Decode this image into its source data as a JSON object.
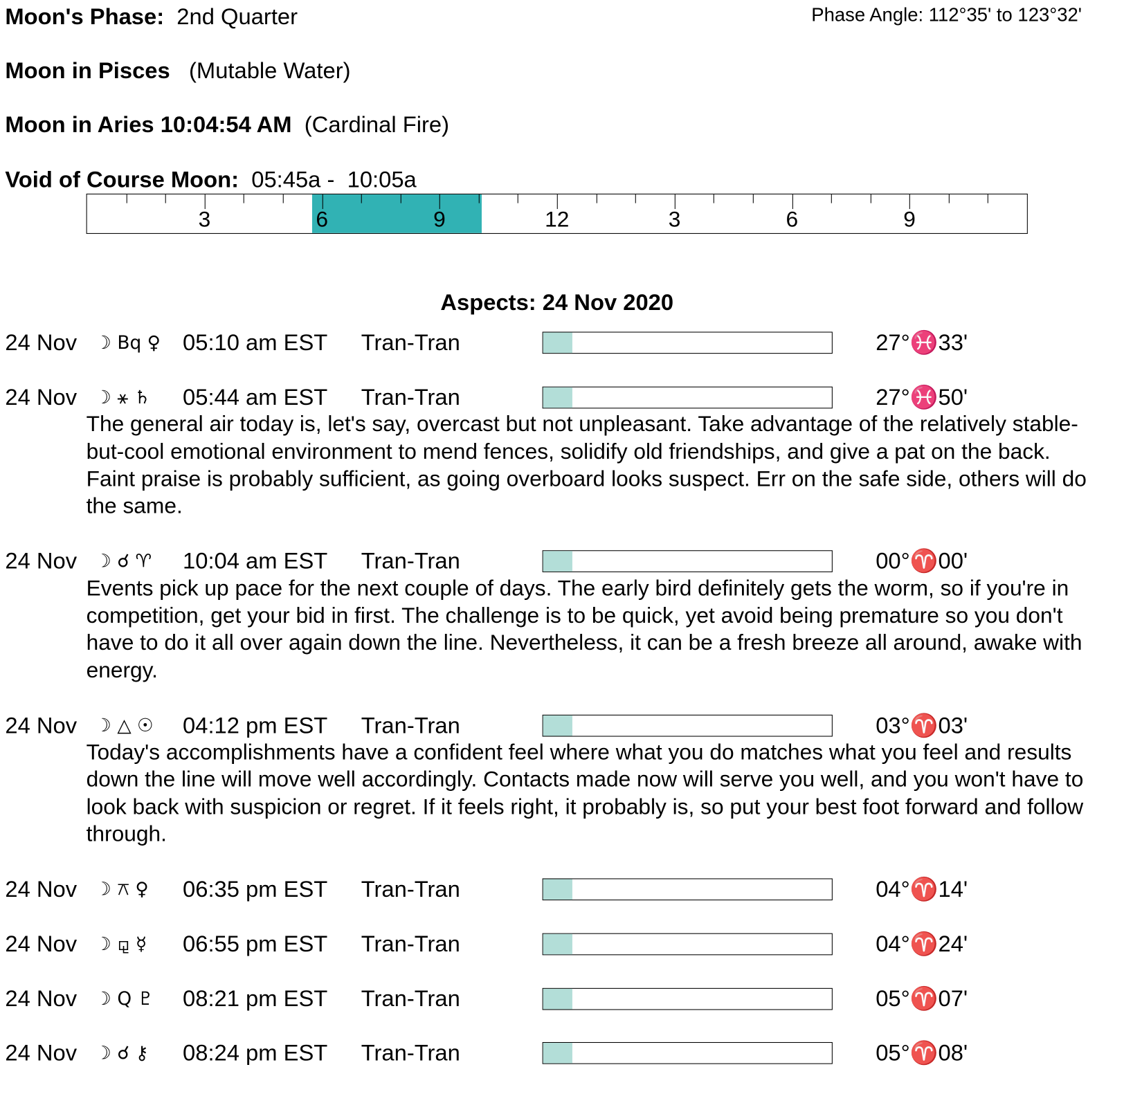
{
  "header": {
    "phase_label": "Moon's Phase:",
    "phase": "2nd Quarter",
    "phase_angle": "Phase Angle:  112°35' to 123°32'",
    "moon_sign_label": "Moon in Pisces",
    "moon_sign_element": "(Mutable Water)",
    "ingress_label": "Moon in Aries 10:04:54 AM",
    "ingress_element": "(Cardinal Fire)"
  },
  "void": {
    "label": "Void of Course Moon:",
    "start": "05:45a",
    "separator": "-",
    "end": "10:05a",
    "hour_labels": [
      "3",
      "6",
      "9",
      "12",
      "3",
      "6",
      "9"
    ]
  },
  "aspects": {
    "title": "Aspects: 24 Nov 2020",
    "rows": [
      {
        "date": "24 Nov",
        "symbols": "☽ Bq ♀",
        "time": "05:10 am EST",
        "kind": "Tran-Tran",
        "position": "27°♓33'"
      },
      {
        "date": "24 Nov",
        "symbols": "☽ ⚹ ♄",
        "time": "05:44 am EST",
        "kind": "Tran-Tran",
        "position": "27°♓50'",
        "text": "The general air today is, let's say, overcast but not unpleasant. Take advantage of the relatively stable-but-cool emotional environment to mend fences, solidify old friendships, and give a pat on the back. Faint praise is probably sufficient, as going overboard looks suspect. Err on the safe side, others will do the same."
      },
      {
        "date": "24 Nov",
        "symbols": "☽ ☌ ♈",
        "time": "10:04 am EST",
        "kind": "Tran-Tran",
        "position": "00°♈00'",
        "text": "Events pick up pace for the next couple of days. The early bird definitely gets the worm, so if you're in competition, get your bid in first. The challenge is to be quick, yet avoid being premature so you don't have to do it all over again down the line. Nevertheless, it can be a fresh breeze all around, awake with energy."
      },
      {
        "date": "24 Nov",
        "symbols": "☽ △ ☉",
        "time": "04:12 pm EST",
        "kind": "Tran-Tran",
        "position": "03°♈03'",
        "text": "Today's accomplishments have a confident feel where what you do matches what you feel and results down the line will move well accordingly. Contacts made now will serve you well, and you won't have to look back with suspicion or regret. If it feels right, it probably is, so put your best foot forward and follow through."
      },
      {
        "date": "24 Nov",
        "symbols": "☽ ⚻ ♀",
        "time": "06:35 pm EST",
        "kind": "Tran-Tran",
        "position": "04°♈14'"
      },
      {
        "date": "24 Nov",
        "symbols": "☽ ⚼ ☿",
        "time": "06:55 pm EST",
        "kind": "Tran-Tran",
        "position": "04°♈24'"
      },
      {
        "date": "24 Nov",
        "symbols": "☽ Q ♇",
        "time": "08:21 pm EST",
        "kind": "Tran-Tran",
        "position": "05°♈07'"
      },
      {
        "date": "24 Nov",
        "symbols": "☽ ☌ ⚷",
        "time": "08:24 pm EST",
        "kind": "Tran-Tran",
        "position": "05°♈08'"
      }
    ]
  }
}
